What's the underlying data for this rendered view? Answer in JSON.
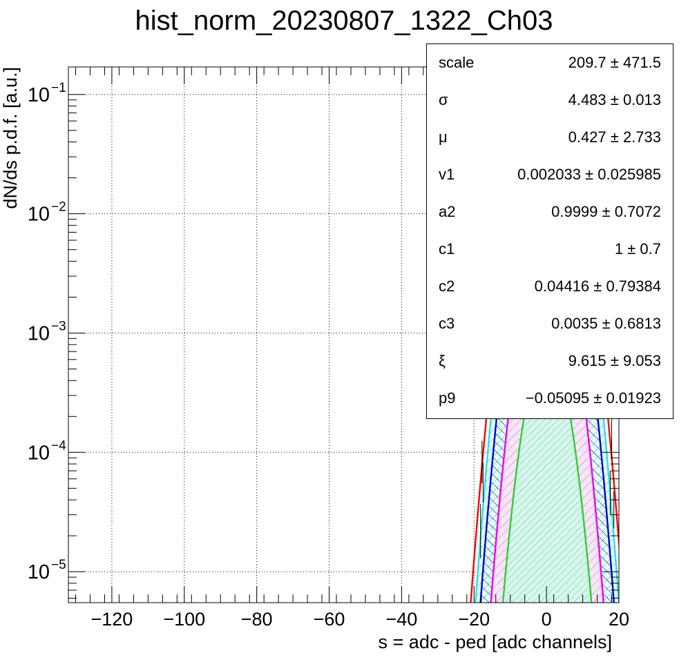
{
  "chart_data": {
    "type": "area",
    "title": "hist_norm_20230807_1322_Ch03",
    "xlabel": "s = adc - ped [adc channels]",
    "ylabel": "dN/ds p.d.f. [a.u.]",
    "xlim": [
      -132,
      20
    ],
    "ylim": [
      5.5e-06,
      0.17
    ],
    "log_y": true,
    "grid": true,
    "x_ticks": [
      -120,
      -100,
      -80,
      -60,
      -40,
      -20,
      0,
      20
    ],
    "x_tick_labels": [
      "−120",
      "−100",
      "−80",
      "−60",
      "−40",
      "−20",
      "0",
      "20"
    ],
    "y_ticks": [
      1e-05,
      0.0001,
      0.001,
      0.01,
      0.1
    ],
    "y_tick_labels": [
      {
        "base": "10",
        "exp": "−5"
      },
      {
        "base": "10",
        "exp": "−4"
      },
      {
        "base": "10",
        "exp": "−3"
      },
      {
        "base": "10",
        "exp": "−2"
      },
      {
        "base": "10",
        "exp": "−1"
      }
    ],
    "series": [
      {
        "color": "#ff0000",
        "peak": 0.088,
        "sigma": 4.8,
        "fill": "none"
      },
      {
        "color": "#33dddd",
        "peak": 0.058,
        "sigma": 4.6,
        "fill": "hatch-cyan"
      },
      {
        "color": "#0000cc",
        "peak": 0.024,
        "sigma": 4.5,
        "fill": "hatch-black"
      },
      {
        "color": "#ee00ee",
        "peak": 0.0052,
        "sigma": 4.2,
        "fill": "hatch-magenta"
      },
      {
        "color": "#33cc33",
        "peak": 0.00075,
        "sigma": 3.9,
        "fill": "hatch-green"
      }
    ],
    "stats_box": [
      {
        "name": "scale",
        "value": "209.7 ± 471.5"
      },
      {
        "name": "σ",
        "value": "4.483 ± 0.013"
      },
      {
        "name": "μ",
        "value": "0.427 ± 2.733"
      },
      {
        "name": "v1",
        "value": "0.002033 ± 0.025985"
      },
      {
        "name": "a2",
        "value": "0.9999 ± 0.7072"
      },
      {
        "name": "c1",
        "value": "1 ± 0.7"
      },
      {
        "name": "c2",
        "value": "0.04416 ± 0.79384"
      },
      {
        "name": "c3",
        "value": "0.0035 ± 0.6813"
      },
      {
        "name": "ξ",
        "value": "9.615 ± 9.053"
      },
      {
        "name": "p9",
        "value": "−0.05095 ± 0.01923"
      }
    ]
  }
}
